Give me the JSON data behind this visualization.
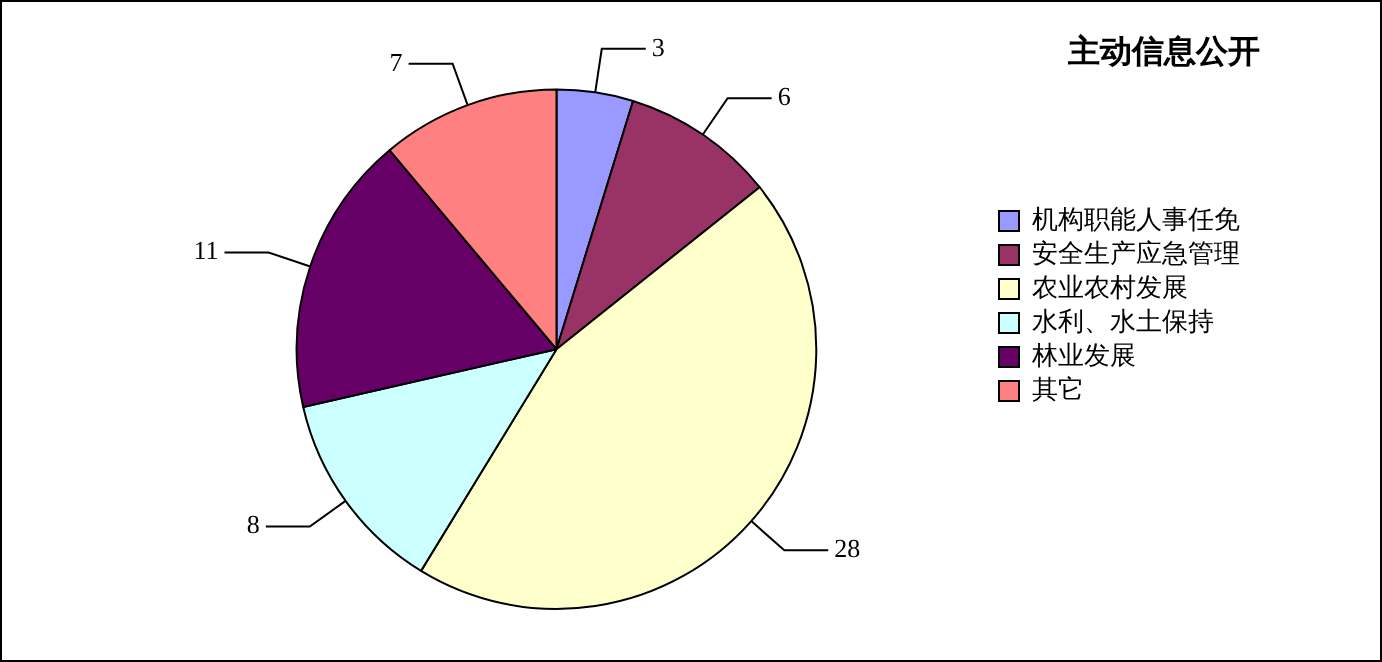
{
  "chart_data": {
    "type": "pie",
    "title": "主动信息公开",
    "categories": [
      "机构职能人事任免",
      "安全生产应急管理",
      "农业农村发展",
      "水利、水土保持",
      "林业发展",
      "其它"
    ],
    "values": [
      3,
      6,
      28,
      8,
      11,
      7
    ],
    "colors": [
      "#9999ff",
      "#993366",
      "#ffffcc",
      "#ccffff",
      "#660066",
      "#ff8080"
    ],
    "data_labels": true,
    "legend": "right"
  }
}
